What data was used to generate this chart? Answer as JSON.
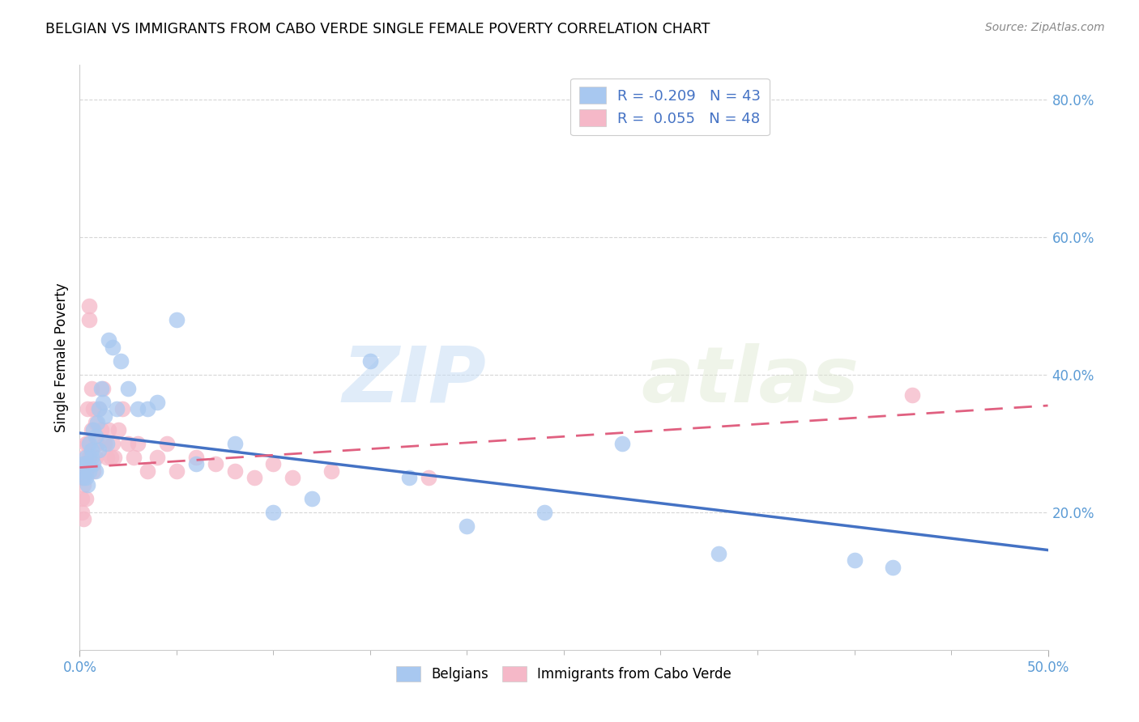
{
  "title": "BELGIAN VS IMMIGRANTS FROM CABO VERDE SINGLE FEMALE POVERTY CORRELATION CHART",
  "source": "Source: ZipAtlas.com",
  "ylabel": "Single Female Poverty",
  "xlim": [
    0.0,
    0.5
  ],
  "ylim": [
    0.0,
    0.85
  ],
  "yticks": [
    0.2,
    0.4,
    0.6,
    0.8
  ],
  "ytick_labels": [
    "20.0%",
    "40.0%",
    "60.0%",
    "80.0%"
  ],
  "xtick_show": [
    0.0,
    0.5
  ],
  "xtick_show_labels": [
    "0.0%",
    "50.0%"
  ],
  "xtick_minor": [
    0.05,
    0.1,
    0.15,
    0.2,
    0.25,
    0.3,
    0.35,
    0.4,
    0.45
  ],
  "background_color": "#ffffff",
  "grid_color": "#cccccc",
  "belgians_color": "#a8c8f0",
  "cabo_verde_color": "#f5b8c8",
  "blue_line_color": "#4472c4",
  "pink_line_color": "#e06080",
  "R_belgians": -0.209,
  "N_belgians": 43,
  "R_cabo_verde": 0.055,
  "N_cabo_verde": 48,
  "watermark_zip": "ZIP",
  "watermark_atlas": "atlas",
  "legend_R_color": "#4472c4",
  "legend_label1": "R = -0.209   N = 43",
  "legend_label2": "R =  0.055   N = 48",
  "bottom_legend_label1": "Belgians",
  "bottom_legend_label2": "Immigrants from Cabo Verde",
  "belgians_x": [
    0.001,
    0.002,
    0.002,
    0.003,
    0.003,
    0.004,
    0.004,
    0.005,
    0.005,
    0.006,
    0.006,
    0.007,
    0.007,
    0.008,
    0.008,
    0.009,
    0.01,
    0.01,
    0.011,
    0.012,
    0.013,
    0.014,
    0.015,
    0.017,
    0.019,
    0.021,
    0.025,
    0.03,
    0.035,
    0.04,
    0.05,
    0.06,
    0.08,
    0.1,
    0.12,
    0.15,
    0.17,
    0.2,
    0.24,
    0.28,
    0.33,
    0.4,
    0.42
  ],
  "belgians_y": [
    0.26,
    0.27,
    0.25,
    0.28,
    0.25,
    0.24,
    0.27,
    0.3,
    0.26,
    0.29,
    0.28,
    0.32,
    0.27,
    0.31,
    0.26,
    0.33,
    0.35,
    0.29,
    0.38,
    0.36,
    0.34,
    0.3,
    0.45,
    0.44,
    0.35,
    0.42,
    0.38,
    0.35,
    0.35,
    0.36,
    0.48,
    0.27,
    0.3,
    0.2,
    0.22,
    0.42,
    0.25,
    0.18,
    0.2,
    0.3,
    0.14,
    0.13,
    0.12
  ],
  "cabo_verde_x": [
    0.001,
    0.001,
    0.001,
    0.002,
    0.002,
    0.002,
    0.003,
    0.003,
    0.003,
    0.004,
    0.004,
    0.005,
    0.005,
    0.005,
    0.006,
    0.006,
    0.007,
    0.007,
    0.008,
    0.008,
    0.009,
    0.01,
    0.011,
    0.012,
    0.013,
    0.014,
    0.015,
    0.016,
    0.017,
    0.018,
    0.02,
    0.022,
    0.025,
    0.028,
    0.03,
    0.035,
    0.04,
    0.045,
    0.05,
    0.06,
    0.07,
    0.08,
    0.09,
    0.1,
    0.11,
    0.13,
    0.18,
    0.43
  ],
  "cabo_verde_y": [
    0.25,
    0.22,
    0.2,
    0.28,
    0.24,
    0.19,
    0.3,
    0.26,
    0.22,
    0.35,
    0.3,
    0.5,
    0.48,
    0.28,
    0.38,
    0.32,
    0.35,
    0.26,
    0.33,
    0.28,
    0.3,
    0.35,
    0.32,
    0.38,
    0.3,
    0.28,
    0.32,
    0.28,
    0.3,
    0.28,
    0.32,
    0.35,
    0.3,
    0.28,
    0.3,
    0.26,
    0.28,
    0.3,
    0.26,
    0.28,
    0.27,
    0.26,
    0.25,
    0.27,
    0.25,
    0.26,
    0.25,
    0.37
  ],
  "blue_line_x": [
    0.0,
    0.5
  ],
  "blue_line_y": [
    0.315,
    0.145
  ],
  "pink_line_x": [
    0.0,
    0.5
  ],
  "pink_line_y": [
    0.265,
    0.355
  ]
}
